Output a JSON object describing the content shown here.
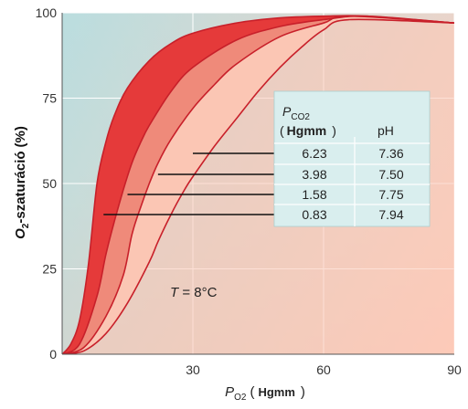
{
  "chart_data": {
    "type": "line",
    "xlabel": {
      "main": "P",
      "sub": "O2",
      "unit": "Hgmm"
    },
    "ylabel": {
      "main": "O",
      "sub": "2",
      "rest": "-szaturáció",
      "unit": "(%)"
    },
    "xlim": [
      0,
      90
    ],
    "ylim": [
      0,
      100
    ],
    "x_ticks": [
      "30",
      "60",
      "90"
    ],
    "y_ticks": [
      "0",
      "25",
      "50",
      "75",
      "100"
    ],
    "series": [
      {
        "x": [
          0,
          2,
          4,
          6,
          8,
          10,
          12,
          15,
          20,
          25,
          30,
          40,
          50,
          60,
          70,
          90
        ],
        "y": [
          0,
          3,
          10,
          26,
          50,
          62,
          70,
          78,
          86,
          91,
          94,
          97,
          98.5,
          99,
          99,
          97
        ]
      },
      {
        "x": [
          0,
          4,
          8,
          10,
          12,
          14,
          16,
          18,
          20,
          25,
          30,
          40,
          50,
          60,
          70,
          90
        ],
        "y": [
          0,
          3,
          17,
          29,
          39,
          48,
          56,
          62,
          67,
          77,
          84,
          92,
          96,
          98,
          99,
          97
        ]
      },
      {
        "x": [
          0,
          5,
          10,
          14,
          16,
          18,
          20,
          22,
          25,
          30,
          35,
          40,
          50,
          60,
          66,
          90
        ],
        "y": [
          0,
          2,
          11,
          23,
          35,
          43,
          50,
          56,
          63,
          72,
          79,
          85,
          93,
          97,
          99,
          97
        ]
      },
      {
        "x": [
          0,
          5,
          10,
          15,
          20,
          22,
          25,
          28,
          30,
          35,
          40,
          45,
          50,
          55,
          60,
          66,
          90
        ],
        "y": [
          0,
          1,
          6,
          15,
          27,
          33,
          41,
          48,
          52,
          61,
          69,
          77,
          84,
          90,
          95,
          98,
          97
        ]
      }
    ],
    "table": {
      "header_p": {
        "main": "P",
        "sub": "CO2",
        "unit": "Hgmm"
      },
      "header_ph": "pH",
      "rows": [
        {
          "pco2": "6.23",
          "ph": "7.36"
        },
        {
          "pco2": "3.98",
          "ph": "7.50"
        },
        {
          "pco2": "1.58",
          "ph": "7.75"
        },
        {
          "pco2": "0.83",
          "ph": "7.94"
        }
      ]
    },
    "annotation": {
      "main": "T",
      "rest": " = 8°C"
    },
    "colors": {
      "plot_bg_top": "#cfe6e7",
      "plot_bg_bottom": "#ffd7c9",
      "band_dark": "#e53a3a",
      "band_mid": "#ef8a7a",
      "band_light": "#fbc6b4",
      "curve_line": "#c8202a",
      "table_bg": "#d9eeee"
    },
    "grid": true
  }
}
